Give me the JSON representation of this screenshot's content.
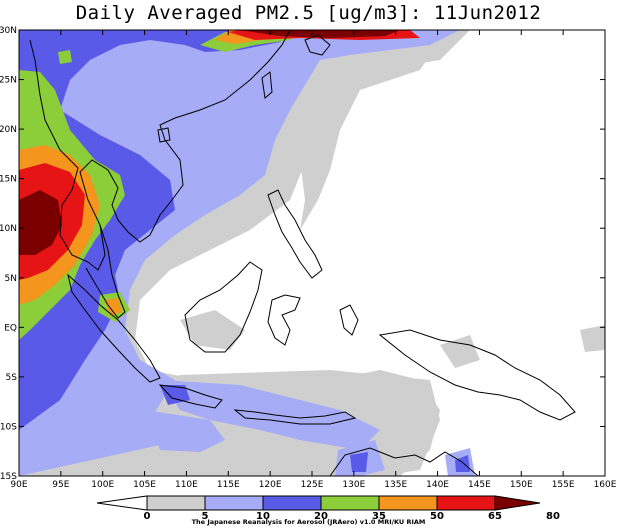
{
  "title": "Daily Averaged PM2.5 [ug/m3]: 11Jun2012",
  "credit": "The Japanese Reanalysis for Aerosol (JRAero) v1.0 MRI/KU RIAM",
  "map": {
    "lon_range": [
      90,
      160
    ],
    "lat_range": [
      -15,
      30
    ],
    "lon_ticks": [
      "90E",
      "95E",
      "100E",
      "105E",
      "110E",
      "115E",
      "120E",
      "125E",
      "130E",
      "135E",
      "140E",
      "145E",
      "150E",
      "155E",
      "160E"
    ],
    "lat_ticks": [
      "30N",
      "25N",
      "20N",
      "15N",
      "10N",
      "5N",
      "EQ",
      "5S",
      "10S",
      "15S"
    ]
  },
  "colorbar": {
    "levels": [
      "0",
      "5",
      "10",
      "20",
      "35",
      "50",
      "65",
      "80"
    ],
    "colors": [
      "#ffffff",
      "#cfcfcf",
      "#a6acf6",
      "#5a5ae8",
      "#8ccd3a",
      "#f4961e",
      "#e61414",
      "#7a0000"
    ]
  }
}
